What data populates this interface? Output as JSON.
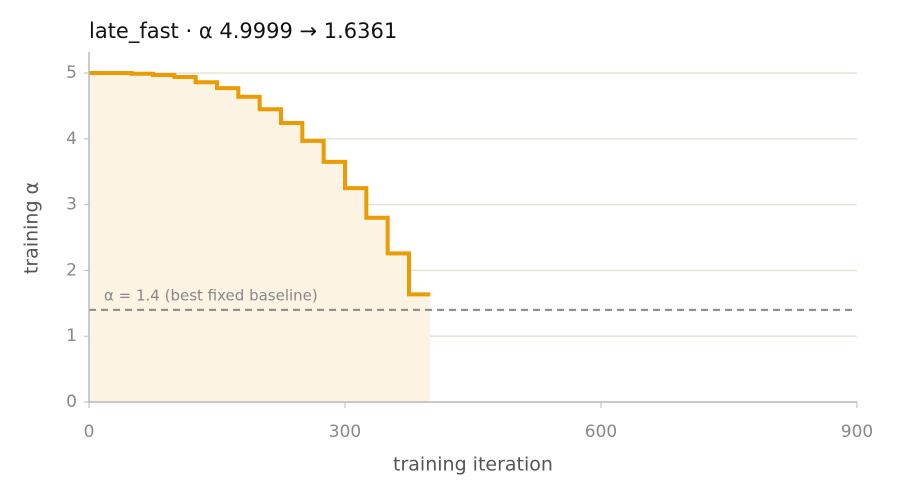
{
  "chart_data": {
    "type": "step",
    "title": "late_fast   ·   α 4.9999 → 1.6361",
    "x_label": "training iteration",
    "y_label": "training α",
    "x": [
      0,
      25,
      50,
      75,
      100,
      125,
      150,
      175,
      200,
      225,
      250,
      275,
      300,
      325,
      350,
      375,
      400
    ],
    "series": [
      {
        "name": "late_fast",
        "color": "#eb9c05",
        "fill": "#fdf3e3",
        "values": [
          4.9999,
          5.0,
          4.99,
          4.97,
          4.94,
          4.86,
          4.77,
          4.64,
          4.45,
          4.24,
          3.97,
          3.65,
          3.25,
          2.8,
          2.26,
          1.6361,
          1.6361
        ]
      }
    ],
    "baseline": {
      "value": 1.4,
      "label": "α = 1.4 (best fixed baseline)",
      "color": "#888888"
    },
    "xlim": [
      0,
      900
    ],
    "ylim": [
      0,
      5.32
    ],
    "xticks": [
      0,
      300,
      600,
      900
    ],
    "yticks": [
      0,
      1,
      2,
      3,
      4,
      5
    ],
    "grid": true
  }
}
